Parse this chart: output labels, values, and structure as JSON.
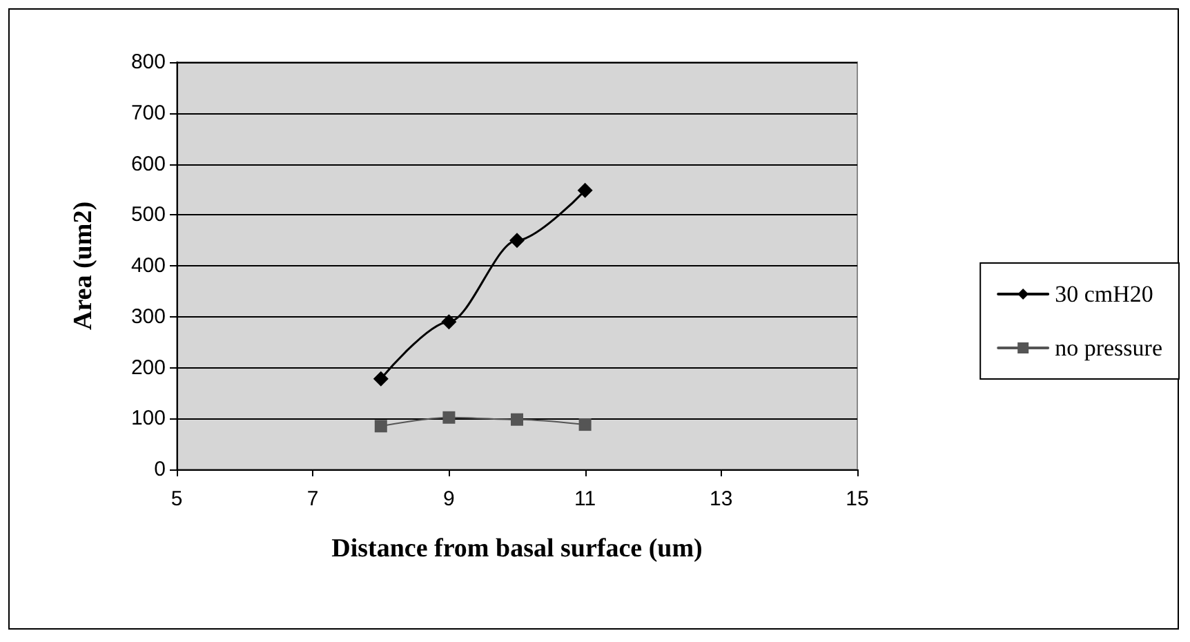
{
  "chart_data": {
    "type": "line",
    "xlabel": "Distance from basal surface (um)",
    "ylabel": "Area (um2)",
    "x": [
      8,
      9,
      10,
      11
    ],
    "series": [
      {
        "name": "30 cmH20",
        "color": "#000000",
        "values": [
          178,
          290,
          450,
          548
        ],
        "marker": "diamond"
      },
      {
        "name": "no pressure",
        "color": "#555555",
        "values": [
          85,
          102,
          98,
          88
        ],
        "marker": "square"
      }
    ],
    "xlim": [
      5,
      15
    ],
    "xticks": [
      5,
      7,
      9,
      11,
      13,
      15
    ],
    "ylim": [
      0,
      800
    ],
    "yticks": [
      0,
      100,
      200,
      300,
      400,
      500,
      600,
      700,
      800
    ],
    "grid": "y",
    "legend": "right",
    "line_style": "solid"
  }
}
